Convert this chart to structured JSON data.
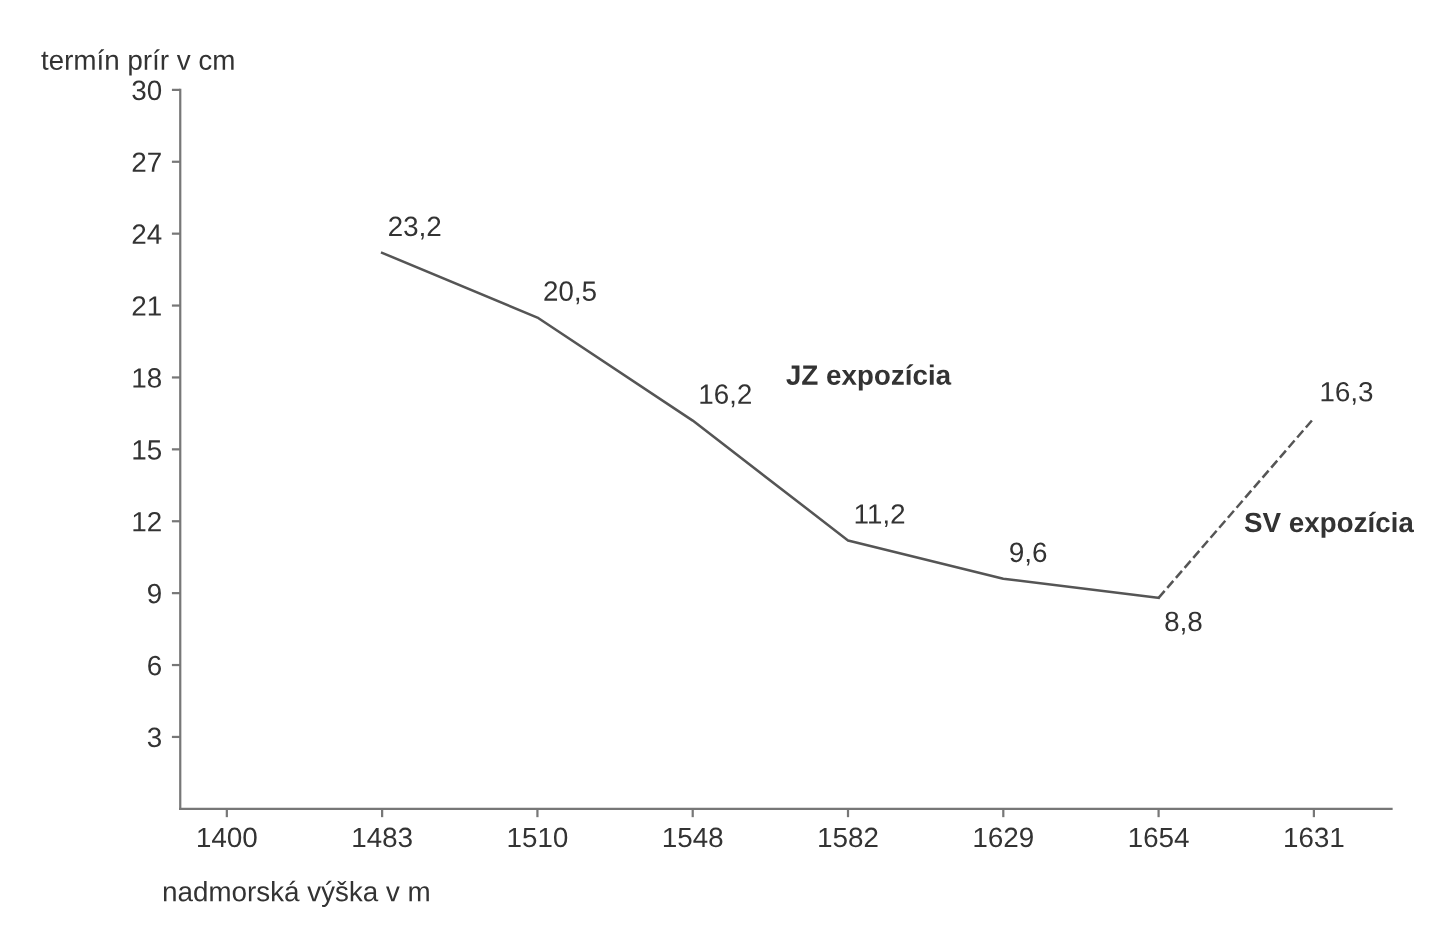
{
  "chart_data": {
    "type": "line",
    "xlabel": "nadmorská výška v m",
    "ylabel": "termín prír v cm",
    "categories": [
      "1400",
      "1483",
      "1510",
      "1548",
      "1582",
      "1629",
      "1654",
      "1631"
    ],
    "series": [
      {
        "name": "JZ expozícia",
        "color": "#555555",
        "line_style": "solid",
        "values": [
          null,
          23.2,
          20.5,
          16.2,
          11.2,
          9.6,
          8.8,
          null
        ],
        "value_labels": [
          null,
          "23,2",
          "20,5",
          "16,2",
          "11,2",
          "9,6",
          "8,8",
          null
        ]
      },
      {
        "name": "SV expozícia",
        "color": "#555555",
        "line_style": "dashed",
        "values": [
          null,
          null,
          null,
          null,
          null,
          null,
          8.8,
          16.3
        ],
        "value_labels": [
          null,
          null,
          null,
          null,
          null,
          null,
          null,
          "16,3"
        ]
      }
    ],
    "ylim": [
      0,
      30
    ],
    "yticks": [
      3,
      6,
      9,
      12,
      15,
      18,
      21,
      24,
      27,
      30
    ],
    "grid": false,
    "legend": false,
    "marker": "none"
  }
}
